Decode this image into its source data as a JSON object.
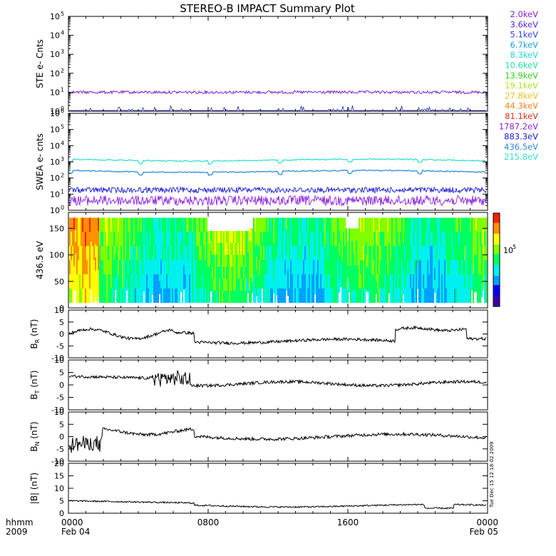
{
  "title": "STEREO-B IMPACT Summary Plot",
  "colors": {
    "frame": "#000000",
    "ste_trace_main": "#7a1fd0",
    "ste_trace_low": "#1a22d8",
    "swea_215": "#30e0c8",
    "swea_436": "#2a8adf",
    "swea_883": "#1a1ad8",
    "swea_1787": "#8a1fe0",
    "colorbar": [
      "#3a00a8",
      "#0000ff",
      "#00a0ff",
      "#00f0f0",
      "#00ff60",
      "#80ff00",
      "#ffff00",
      "#ff9000",
      "#ff2000"
    ]
  },
  "legend": [
    {
      "label": "2.0keV",
      "color": "#8a1fd0"
    },
    {
      "label": "3.6keV",
      "color": "#5a1fd8"
    },
    {
      "label": "5.1keV",
      "color": "#2a40e8"
    },
    {
      "label": "6.7keV",
      "color": "#20a0e0"
    },
    {
      "label": "8.3keV",
      "color": "#20d8d0"
    },
    {
      "label": "10.6keV",
      "color": "#20e0a0"
    },
    {
      "label": "13.9keV",
      "color": "#30d020"
    },
    {
      "label": "19.1keV",
      "color": "#b0e020"
    },
    {
      "label": "27.8keV",
      "color": "#f0c020"
    },
    {
      "label": "44.3keV",
      "color": "#f08020"
    },
    {
      "label": "81.1keV",
      "color": "#e03020"
    },
    {
      "label": "1787.2eV",
      "color": "#8a1fe0"
    },
    {
      "label": "883.3eV",
      "color": "#1a1ad8"
    },
    {
      "label": "436.5eV",
      "color": "#2a8adf"
    },
    {
      "label": "215.8eV",
      "color": "#30e0c8"
    }
  ],
  "timestamp": "Tue Dec 15 12:18:02 2009",
  "chart_data": [
    {
      "type": "line",
      "ylabel": "STE e- Cnts",
      "yscale": "log",
      "ylim": [
        1,
        100000
      ],
      "ytick_bases": [
        "10",
        "10",
        "10",
        "10",
        "10",
        "10"
      ],
      "ytick_exps": [
        "0",
        "1",
        "2",
        "3",
        "4",
        "5"
      ],
      "series": [
        {
          "name": "2.0keV",
          "level": 10
        },
        {
          "name": "3.6keV",
          "level": 1
        }
      ]
    },
    {
      "type": "line",
      "ylabel": "SWEA e- cnts",
      "yscale": "log",
      "ylim": [
        1,
        1000000
      ],
      "ytick_bases": [
        "10",
        "10",
        "10",
        "10",
        "10",
        "10",
        "10"
      ],
      "ytick_exps": [
        "0",
        "1",
        "2",
        "3",
        "4",
        "5",
        "6"
      ],
      "series": [
        {
          "name": "215.8eV",
          "level": 1500
        },
        {
          "name": "436.5eV",
          "level": 300
        },
        {
          "name": "883.3eV",
          "level": 18
        },
        {
          "name": "1787.2eV",
          "level": 4
        }
      ]
    },
    {
      "type": "heatmap",
      "ylabel": "436.5 eV",
      "ylim": [
        0,
        180
      ],
      "yticks": [
        "0",
        "50",
        "100",
        "150"
      ],
      "colorbar_label_base": "10",
      "colorbar_label_exp": "5"
    },
    {
      "type": "line",
      "ylabel_main": "B",
      "ylabel_sub": "R",
      "ylabel_unit": " (nT)",
      "ylim": [
        -10,
        10
      ],
      "yticks": [
        "-10",
        "-5",
        "0",
        "5",
        "10"
      ]
    },
    {
      "type": "line",
      "ylabel_main": "B",
      "ylabel_sub": "T",
      "ylabel_unit": " (nT)",
      "ylim": [
        -10,
        10
      ],
      "yticks": [
        "-10",
        "-5",
        "0",
        "5",
        "10"
      ]
    },
    {
      "type": "line",
      "ylabel_main": "B",
      "ylabel_sub": "N",
      "ylabel_unit": " (nT)",
      "ylim": [
        -10,
        10
      ],
      "yticks": [
        "-10",
        "-5",
        "0",
        "5",
        "10"
      ]
    },
    {
      "type": "line",
      "ylabel_main": "|B|",
      "ylabel_sub": "",
      "ylabel_unit": " (nT)",
      "ylim": [
        0,
        20
      ],
      "yticks": [
        "0",
        "5",
        "10",
        "15",
        "20"
      ]
    }
  ],
  "xaxis": {
    "unit_label": "hhmm",
    "year_label": "2009",
    "ticks": [
      {
        "label": "0000",
        "date": "Feb 04",
        "hour": 0
      },
      {
        "label": "0800",
        "date": "",
        "hour": 8
      },
      {
        "label": "1600",
        "date": "",
        "hour": 16
      },
      {
        "label": "0000",
        "date": "Feb 05",
        "hour": 24
      }
    ]
  }
}
